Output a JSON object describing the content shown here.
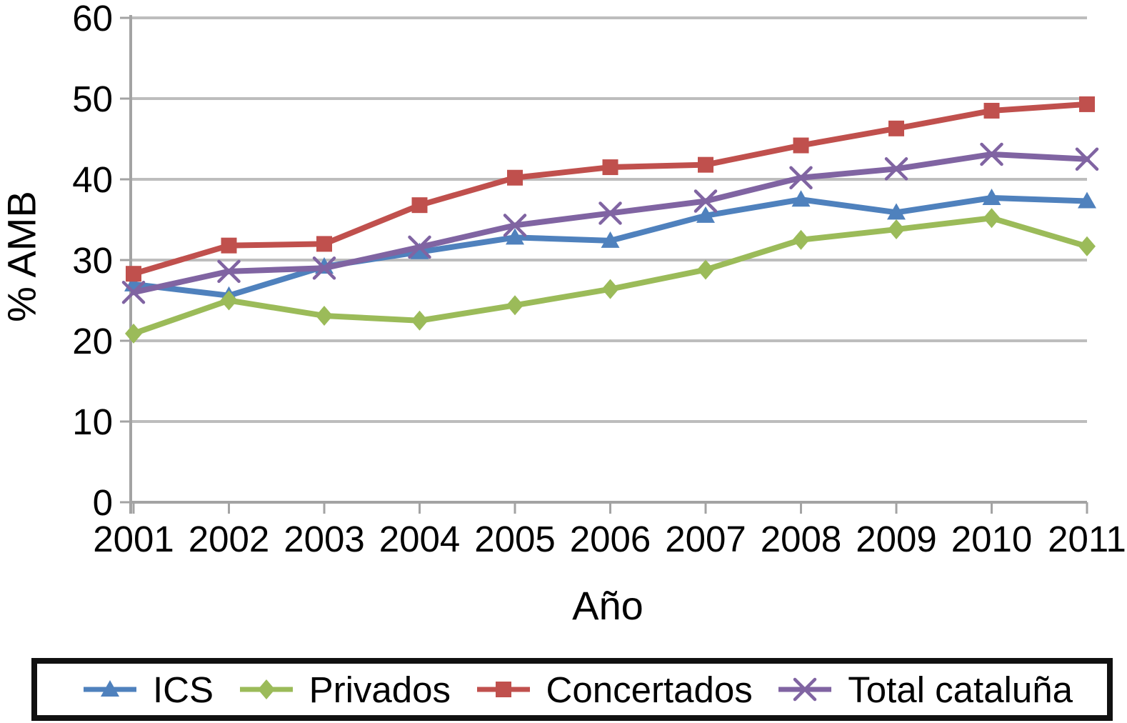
{
  "chart_data": {
    "type": "line",
    "title": "",
    "xlabel": "Año",
    "ylabel": "% AMB",
    "x": [
      2001,
      2002,
      2003,
      2004,
      2005,
      2006,
      2007,
      2008,
      2009,
      2010,
      2011
    ],
    "ylim": [
      0,
      60
    ],
    "ytick_step": 10,
    "grid": true,
    "legend_position": "bottom",
    "background_color": "#ffffff",
    "text_color": "#000000",
    "grid_color": "#bdbdbd",
    "axis_color": "#a3a3a3",
    "series": [
      {
        "name": "ICS",
        "color": "#4f81bd",
        "marker": "triangle",
        "values": [
          27.0,
          25.6,
          29.2,
          31.0,
          32.8,
          32.4,
          35.5,
          37.5,
          35.9,
          37.7,
          37.3
        ]
      },
      {
        "name": "Privados",
        "color": "#9bbb59",
        "marker": "diamond",
        "values": [
          20.9,
          25.0,
          23.1,
          22.5,
          24.4,
          26.4,
          28.8,
          32.5,
          33.8,
          35.2,
          31.7
        ]
      },
      {
        "name": "Concertados",
        "color": "#c0504d",
        "marker": "square",
        "values": [
          28.3,
          31.8,
          32.0,
          36.8,
          40.2,
          41.5,
          41.8,
          44.2,
          46.3,
          48.5,
          49.3
        ]
      },
      {
        "name": "Total cataluña",
        "color": "#8064a2",
        "marker": "x",
        "values": [
          26.0,
          28.6,
          29.0,
          31.6,
          34.3,
          35.8,
          37.3,
          40.2,
          41.3,
          43.1,
          42.5
        ]
      }
    ]
  }
}
